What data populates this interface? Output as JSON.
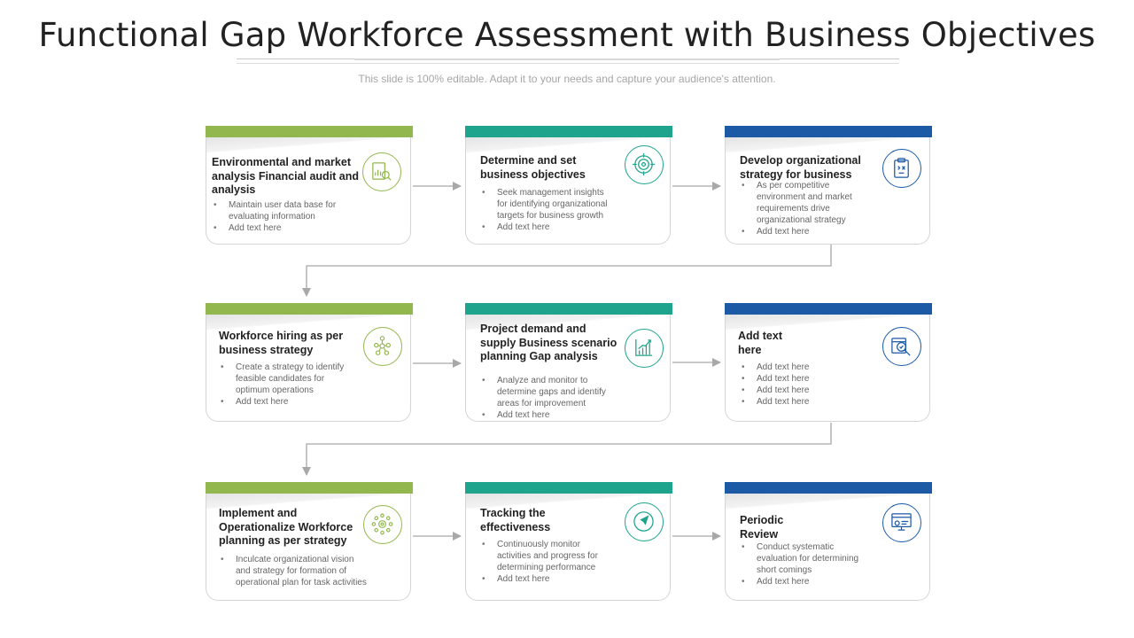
{
  "slide": {
    "title": "Functional Gap Workforce Assessment with Business Objectives",
    "subtitle": "This slide is 100% editable. Adapt it to your needs and capture your audience's attention."
  },
  "colors": {
    "green": "#93b74f",
    "teal": "#1ea48c",
    "blue": "#1c5aa6",
    "arrow": "#a8a8a8"
  },
  "cards": [
    {
      "heading": "Environmental and market analysis Financial audit and analysis",
      "icon": "analysis-chart-icon",
      "bullets": [
        "Maintain user data base for evaluating information",
        "Add text here"
      ]
    },
    {
      "heading": "Determine and set business objectives",
      "icon": "target-icon",
      "bullets": [
        "Seek management insights for identifying organizational targets for business growth",
        "Add text here"
      ]
    },
    {
      "heading": "Develop organizational strategy for business",
      "icon": "clipboard-strategy-icon",
      "bullets": [
        "As per competitive environment and market requirements drive organizational strategy",
        "Add text here"
      ]
    },
    {
      "heading": "Workforce hiring as per business strategy",
      "icon": "team-network-icon",
      "bullets": [
        "Create a strategy to identify feasible candidates for optimum operations",
        "Add text here"
      ]
    },
    {
      "heading": "Project demand and supply Business scenario planning Gap analysis",
      "icon": "growth-chart-icon",
      "bullets": [
        "Analyze and monitor to determine gaps and identify areas for improvement",
        "Add text here"
      ]
    },
    {
      "heading": "Add text here",
      "icon": "magnifier-report-icon",
      "bullets": [
        "Add text here",
        "Add text here",
        "Add text here",
        "Add text here"
      ]
    },
    {
      "heading": "Implement and Operationalize Workforce planning as per strategy",
      "icon": "gear-network-icon",
      "bullets": [
        "Inculcate organizational vision and strategy for formation of operational plan for task activities"
      ]
    },
    {
      "heading": "Tracking the effectiveness",
      "icon": "navigation-arrow-icon",
      "bullets": [
        "Continuously monitor activities and progress for determining performance",
        "Add text here"
      ]
    },
    {
      "heading": "Periodic Review",
      "icon": "review-screen-icon",
      "bullets": [
        "Conduct systematic evaluation for determining short comings",
        "Add text here"
      ]
    }
  ]
}
